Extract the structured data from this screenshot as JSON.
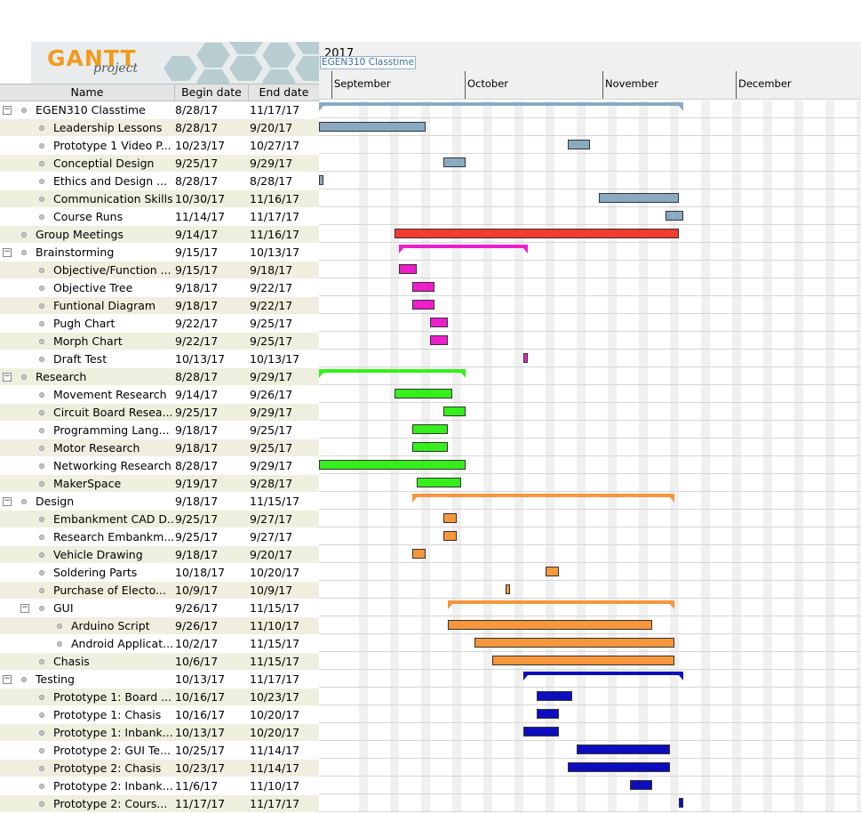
{
  "logo": {
    "brand": "GANTT",
    "sub": "project"
  },
  "columns": {
    "name": "Name",
    "begin": "Begin date",
    "end": "End date"
  },
  "chart_header": {
    "year": "2017",
    "project_label": "EGEN310 Classtime",
    "months": [
      "September",
      "October",
      "November",
      "December"
    ]
  },
  "colors": {
    "classtime": "#8aaac2",
    "meetings": "#f53a31",
    "brainstorm": "#ef1dcb",
    "research": "#35ef1a",
    "design": "#f7963b",
    "testing": "#0d0dbf"
  },
  "tasks": [
    {
      "name": "EGEN310 Classtime",
      "begin": "8/28/17",
      "end": "11/17/17",
      "level": 0,
      "group": true,
      "start": "2017-08-28",
      "finish": "2017-11-17",
      "color": "classtime"
    },
    {
      "name": "Leadership Lessons",
      "begin": "8/28/17",
      "end": "9/20/17",
      "level": 1,
      "start": "2017-08-28",
      "finish": "2017-09-20",
      "color": "classtime"
    },
    {
      "name": "Prototype 1 Video P...",
      "begin": "10/23/17",
      "end": "10/27/17",
      "level": 1,
      "start": "2017-10-23",
      "finish": "2017-10-27",
      "color": "classtime"
    },
    {
      "name": "Conceptial Design",
      "begin": "9/25/17",
      "end": "9/29/17",
      "level": 1,
      "start": "2017-09-25",
      "finish": "2017-09-29",
      "color": "classtime"
    },
    {
      "name": "Ethics and Design ...",
      "begin": "8/28/17",
      "end": "8/28/17",
      "level": 1,
      "start": "2017-08-28",
      "finish": "2017-08-28",
      "color": "classtime"
    },
    {
      "name": "Communication Skills",
      "begin": "10/30/17",
      "end": "11/16/17",
      "level": 1,
      "start": "2017-10-30",
      "finish": "2017-11-16",
      "color": "classtime"
    },
    {
      "name": "Course Runs",
      "begin": "11/14/17",
      "end": "11/17/17",
      "level": 1,
      "start": "2017-11-14",
      "finish": "2017-11-17",
      "color": "classtime"
    },
    {
      "name": "Group Meetings",
      "begin": "9/14/17",
      "end": "11/16/17",
      "level": 0,
      "start": "2017-09-14",
      "finish": "2017-11-16",
      "color": "meetings"
    },
    {
      "name": "Brainstorming",
      "begin": "9/15/17",
      "end": "10/13/17",
      "level": 0,
      "group": true,
      "start": "2017-09-15",
      "finish": "2017-10-13",
      "color": "brainstorm"
    },
    {
      "name": "Objective/Function ...",
      "begin": "9/15/17",
      "end": "9/18/17",
      "level": 1,
      "start": "2017-09-15",
      "finish": "2017-09-18",
      "color": "brainstorm"
    },
    {
      "name": "Objective Tree",
      "begin": "9/18/17",
      "end": "9/22/17",
      "level": 1,
      "start": "2017-09-18",
      "finish": "2017-09-22",
      "color": "brainstorm"
    },
    {
      "name": "Funtional Diagram",
      "begin": "9/18/17",
      "end": "9/22/17",
      "level": 1,
      "start": "2017-09-18",
      "finish": "2017-09-22",
      "color": "brainstorm"
    },
    {
      "name": "Pugh Chart",
      "begin": "9/22/17",
      "end": "9/25/17",
      "level": 1,
      "start": "2017-09-22",
      "finish": "2017-09-25",
      "color": "brainstorm"
    },
    {
      "name": "Morph Chart",
      "begin": "9/22/17",
      "end": "9/25/17",
      "level": 1,
      "start": "2017-09-22",
      "finish": "2017-09-25",
      "color": "brainstorm"
    },
    {
      "name": "Draft Test",
      "begin": "10/13/17",
      "end": "10/13/17",
      "level": 1,
      "start": "2017-10-13",
      "finish": "2017-10-13",
      "color": "brainstorm"
    },
    {
      "name": "Research",
      "begin": "8/28/17",
      "end": "9/29/17",
      "level": 0,
      "group": true,
      "start": "2017-08-28",
      "finish": "2017-09-29",
      "color": "research"
    },
    {
      "name": "Movement Research",
      "begin": "9/14/17",
      "end": "9/26/17",
      "level": 1,
      "start": "2017-09-14",
      "finish": "2017-09-26",
      "color": "research"
    },
    {
      "name": "Circuit Board Resea...",
      "begin": "9/25/17",
      "end": "9/29/17",
      "level": 1,
      "start": "2017-09-25",
      "finish": "2017-09-29",
      "color": "research"
    },
    {
      "name": "Programming Lang...",
      "begin": "9/18/17",
      "end": "9/25/17",
      "level": 1,
      "start": "2017-09-18",
      "finish": "2017-09-25",
      "color": "research"
    },
    {
      "name": "Motor Research",
      "begin": "9/18/17",
      "end": "9/25/17",
      "level": 1,
      "start": "2017-09-18",
      "finish": "2017-09-25",
      "color": "research"
    },
    {
      "name": "Networking Research",
      "begin": "8/28/17",
      "end": "9/29/17",
      "level": 1,
      "start": "2017-08-28",
      "finish": "2017-09-29",
      "color": "research"
    },
    {
      "name": "MakerSpace",
      "begin": "9/19/17",
      "end": "9/28/17",
      "level": 1,
      "start": "2017-09-19",
      "finish": "2017-09-28",
      "color": "research"
    },
    {
      "name": "Design",
      "begin": "9/18/17",
      "end": "11/15/17",
      "level": 0,
      "group": true,
      "start": "2017-09-18",
      "finish": "2017-11-15",
      "color": "design"
    },
    {
      "name": "Embankment CAD D...",
      "begin": "9/25/17",
      "end": "9/27/17",
      "level": 1,
      "start": "2017-09-25",
      "finish": "2017-09-27",
      "color": "design"
    },
    {
      "name": "Research Embankm...",
      "begin": "9/25/17",
      "end": "9/27/17",
      "level": 1,
      "start": "2017-09-25",
      "finish": "2017-09-27",
      "color": "design"
    },
    {
      "name": "Vehicle Drawing",
      "begin": "9/18/17",
      "end": "9/20/17",
      "level": 1,
      "start": "2017-09-18",
      "finish": "2017-09-20",
      "color": "design"
    },
    {
      "name": "Soldering Parts",
      "begin": "10/18/17",
      "end": "10/20/17",
      "level": 1,
      "start": "2017-10-18",
      "finish": "2017-10-20",
      "color": "design"
    },
    {
      "name": "Purchase of Electo...",
      "begin": "10/9/17",
      "end": "10/9/17",
      "level": 1,
      "start": "2017-10-09",
      "finish": "2017-10-09",
      "color": "design"
    },
    {
      "name": "GUI",
      "begin": "9/26/17",
      "end": "11/15/17",
      "level": 1,
      "group": true,
      "start": "2017-09-26",
      "finish": "2017-11-15",
      "color": "design"
    },
    {
      "name": "Arduino Script",
      "begin": "9/26/17",
      "end": "11/10/17",
      "level": 2,
      "start": "2017-09-26",
      "finish": "2017-11-10",
      "color": "design"
    },
    {
      "name": "Android Applicat...",
      "begin": "10/2/17",
      "end": "11/15/17",
      "level": 2,
      "start": "2017-10-02",
      "finish": "2017-11-15",
      "color": "design"
    },
    {
      "name": "Chasis",
      "begin": "10/6/17",
      "end": "11/15/17",
      "level": 1,
      "start": "2017-10-06",
      "finish": "2017-11-15",
      "color": "design"
    },
    {
      "name": "Testing",
      "begin": "10/13/17",
      "end": "11/17/17",
      "level": 0,
      "group": true,
      "start": "2017-10-13",
      "finish": "2017-11-17",
      "color": "testing"
    },
    {
      "name": "Prototype 1: Board ...",
      "begin": "10/16/17",
      "end": "10/23/17",
      "level": 1,
      "start": "2017-10-16",
      "finish": "2017-10-23",
      "color": "testing"
    },
    {
      "name": "Prototype 1: Chasis",
      "begin": "10/16/17",
      "end": "10/20/17",
      "level": 1,
      "start": "2017-10-16",
      "finish": "2017-10-20",
      "color": "testing"
    },
    {
      "name": "Prototype 1: Inbank...",
      "begin": "10/13/17",
      "end": "10/20/17",
      "level": 1,
      "start": "2017-10-13",
      "finish": "2017-10-20",
      "color": "testing"
    },
    {
      "name": "Prototype 2: GUI Te...",
      "begin": "10/25/17",
      "end": "11/14/17",
      "level": 1,
      "start": "2017-10-25",
      "finish": "2017-11-14",
      "color": "testing"
    },
    {
      "name": "Prototype 2: Chasis",
      "begin": "10/23/17",
      "end": "11/14/17",
      "level": 1,
      "start": "2017-10-23",
      "finish": "2017-11-14",
      "color": "testing"
    },
    {
      "name": "Prototype 2: Inbank...",
      "begin": "11/6/17",
      "end": "11/10/17",
      "level": 1,
      "start": "2017-11-06",
      "finish": "2017-11-10",
      "color": "testing"
    },
    {
      "name": "Prototype 2: Cours...",
      "begin": "11/17/17",
      "end": "11/17/17",
      "level": 1,
      "start": "2017-11-17",
      "finish": "2017-11-17",
      "color": "testing"
    }
  ]
}
